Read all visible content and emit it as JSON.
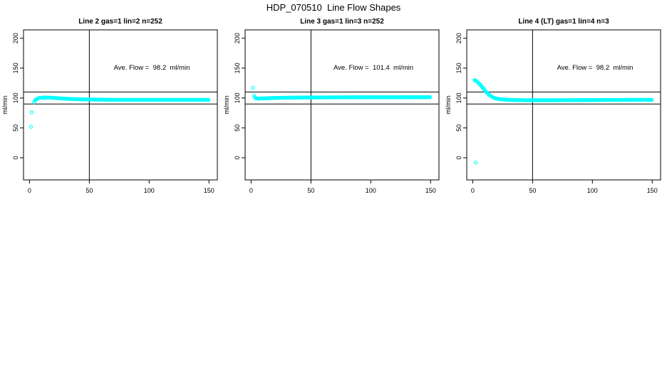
{
  "page": {
    "title": "HDP_070510  Line Flow Shapes",
    "background_color": "#ffffff"
  },
  "styles": {
    "point_color": "#00ffff",
    "axis_color": "#000000",
    "text_color": "#000000"
  },
  "axes": {
    "xticks": [
      0,
      50,
      100,
      150
    ],
    "yticks": [
      0,
      50,
      100,
      150,
      200
    ],
    "xlim": [
      -5,
      157
    ],
    "ylim": [
      -37,
      214
    ],
    "ref_lines_y": [
      90,
      110
    ],
    "ref_line_x": 50,
    "ylabel": "ml/min"
  },
  "chart_data": [
    {
      "type": "scatter",
      "title": "Line 2 gas=1 lin=2 n=252",
      "annotation": "Ave. Flow =  98.2  ml/min",
      "ave_flow_ml_min": 98.2,
      "gas": 1,
      "lin": 2,
      "n": 252,
      "ylabel": "ml/min",
      "point_spacing": 0.6,
      "keypoints": [
        [
          3.8,
          93
        ],
        [
          4.4,
          95.5
        ],
        [
          5,
          97
        ],
        [
          6,
          98.5
        ],
        [
          8,
          100
        ],
        [
          12,
          100.8
        ],
        [
          18,
          100.6
        ],
        [
          25,
          99.5
        ],
        [
          35,
          98.3
        ],
        [
          50,
          97.5
        ],
        [
          70,
          97
        ],
        [
          150,
          97
        ]
      ],
      "outliers": [
        [
          1.2,
          52
        ],
        [
          1.8,
          76
        ]
      ]
    },
    {
      "type": "scatter",
      "title": "Line 3 gas=1 lin=3 n=252",
      "annotation": "Ave. Flow =  101.4  ml/min",
      "ave_flow_ml_min": 101.4,
      "gas": 1,
      "lin": 3,
      "n": 252,
      "ylabel": "ml/min",
      "point_spacing": 0.6,
      "keypoints": [
        [
          2.5,
          104
        ],
        [
          3.2,
          101
        ],
        [
          4,
          99.5
        ],
        [
          6,
          99
        ],
        [
          10,
          99.4
        ],
        [
          20,
          100.2
        ],
        [
          40,
          100.8
        ],
        [
          80,
          101.2
        ],
        [
          150,
          101.4
        ]
      ],
      "outliers": [
        [
          1.5,
          117
        ]
      ]
    },
    {
      "type": "scatter",
      "title": "Line 4 (LT) gas=1 lin=4 n=3",
      "annotation": "Ave. Flow =  98.2  ml/min",
      "ave_flow_ml_min": 98.2,
      "gas": 1,
      "lin": 4,
      "n": 3,
      "ylabel": "ml/min",
      "point_spacing": 0.6,
      "keypoints": [
        [
          1.5,
          130
        ],
        [
          3,
          128.5
        ],
        [
          5,
          125
        ],
        [
          7,
          120.5
        ],
        [
          9,
          115.5
        ],
        [
          11,
          110.5
        ],
        [
          13,
          106.5
        ],
        [
          15,
          103.5
        ],
        [
          17,
          101
        ],
        [
          19,
          99.5
        ],
        [
          22,
          98.2
        ],
        [
          26,
          97.4
        ],
        [
          32,
          96.8
        ],
        [
          45,
          96.3
        ],
        [
          70,
          96.3
        ],
        [
          110,
          96.8
        ],
        [
          150,
          97
        ]
      ],
      "outliers": [
        [
          2.5,
          -8
        ]
      ]
    }
  ]
}
